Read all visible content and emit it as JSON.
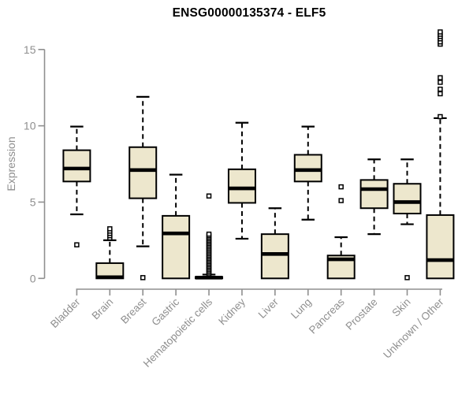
{
  "page": {
    "background": "#ffffff"
  },
  "chart_data": {
    "type": "boxplot",
    "title": "ENSG00000135374 - ELF5",
    "ylabel": "Expression",
    "xlabel": "",
    "ylim": [
      0,
      16.3
    ],
    "yticks": [
      0,
      5,
      10,
      15
    ],
    "grid": false,
    "legend": "none",
    "colors": {
      "box_fill": "#EDE7CD",
      "box_stroke": "#000000",
      "median": "#000000",
      "whisker": "#000000",
      "outlier_stroke": "#000000",
      "outlier_fill": "#ffffff",
      "axis": "#8f8f8f",
      "tick_label": "#8f8f8f",
      "title": "#000000"
    },
    "categories": [
      "Bladder",
      "Brain",
      "Breast",
      "Gastric",
      "Hematopoietic cells",
      "Kidney",
      "Liver",
      "Lung",
      "Pancreas",
      "Prostate",
      "Skin",
      "Unknown / Other"
    ],
    "series": [
      {
        "name": "Bladder",
        "whisker_low": 4.2,
        "q1": 6.35,
        "median": 7.2,
        "q3": 8.4,
        "whisker_high": 9.95,
        "outliers": [
          2.2
        ]
      },
      {
        "name": "Brain",
        "whisker_low": 0,
        "q1": 0,
        "median": 0.08,
        "q3": 1.0,
        "whisker_high": 2.5,
        "outliers": [
          2.65,
          2.8,
          2.95,
          3.1,
          3.25
        ]
      },
      {
        "name": "Breast",
        "whisker_low": 2.1,
        "q1": 5.25,
        "median": 7.1,
        "q3": 8.6,
        "whisker_high": 11.9,
        "outliers": [
          0.05
        ]
      },
      {
        "name": "Gastric",
        "whisker_low": 0,
        "q1": 0,
        "median": 2.95,
        "q3": 4.1,
        "whisker_high": 6.8,
        "outliers": []
      },
      {
        "name": "Hematopoietic cells",
        "whisker_low": 0,
        "q1": 0,
        "median": 0.05,
        "q3": 0.1,
        "whisker_high": 0.25,
        "outliers": [
          0.3,
          0.4,
          0.5,
          0.6,
          0.7,
          0.8,
          0.9,
          1.0,
          1.1,
          1.2,
          1.3,
          1.4,
          1.5,
          1.6,
          1.7,
          1.8,
          1.9,
          2.0,
          2.1,
          2.2,
          2.3,
          2.4,
          2.5,
          2.6,
          2.7,
          2.8,
          2.9,
          5.4
        ]
      },
      {
        "name": "Kidney",
        "whisker_low": 2.6,
        "q1": 4.95,
        "median": 5.9,
        "q3": 7.15,
        "whisker_high": 10.2,
        "outliers": []
      },
      {
        "name": "Liver",
        "whisker_low": 0,
        "q1": 0,
        "median": 1.6,
        "q3": 2.9,
        "whisker_high": 4.6,
        "outliers": []
      },
      {
        "name": "Lung",
        "whisker_low": 3.85,
        "q1": 6.35,
        "median": 7.1,
        "q3": 8.1,
        "whisker_high": 9.95,
        "outliers": []
      },
      {
        "name": "Pancreas",
        "whisker_low": 0,
        "q1": 0,
        "median": 1.25,
        "q3": 1.5,
        "whisker_high": 2.7,
        "outliers": [
          5.1,
          6.0
        ]
      },
      {
        "name": "Prostate",
        "whisker_low": 2.9,
        "q1": 4.6,
        "median": 5.85,
        "q3": 6.45,
        "whisker_high": 7.8,
        "outliers": []
      },
      {
        "name": "Skin",
        "whisker_low": 3.55,
        "q1": 4.25,
        "median": 5.0,
        "q3": 6.2,
        "whisker_high": 7.8,
        "outliers": [
          0.05
        ]
      },
      {
        "name": "Unknown / Other",
        "whisker_low": 0,
        "q1": 0,
        "median": 1.2,
        "q3": 4.15,
        "whisker_high": 10.5,
        "outliers": [
          10.6,
          12.1,
          12.4,
          12.85,
          13.15,
          15.35,
          15.5,
          15.7,
          15.85,
          16.0,
          16.15
        ]
      }
    ]
  }
}
